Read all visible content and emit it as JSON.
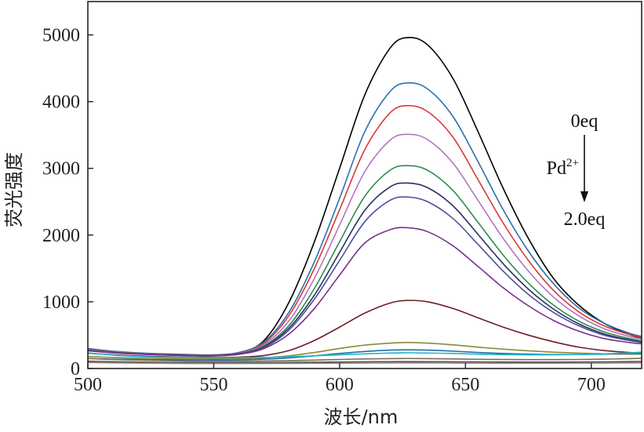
{
  "chart_data": {
    "type": "line",
    "xlabel": "波长/nm",
    "ylabel": "荧光强度",
    "xlim": [
      500,
      720
    ],
    "ylim": [
      0,
      5500
    ],
    "x_ticks": [
      500,
      550,
      600,
      650,
      700
    ],
    "y_ticks": [
      0,
      1000,
      2000,
      3000,
      4000,
      5000
    ],
    "x_tick_labels": [
      "500",
      "550",
      "600",
      "650",
      "700"
    ],
    "y_tick_labels": [
      "0",
      "1000",
      "2000",
      "3000",
      "4000",
      "5000"
    ],
    "grid": false,
    "legend": "none",
    "annotation": {
      "top_label": "0eq",
      "ion_label": "Pd",
      "ion_charge": "2+",
      "bottom_label": "2.0eq",
      "arrow_direction": "down"
    },
    "x": [
      500,
      510,
      520,
      530,
      540,
      550,
      560,
      570,
      580,
      590,
      600,
      610,
      620,
      627,
      635,
      645,
      655,
      665,
      675,
      685,
      695,
      705,
      715,
      720
    ],
    "series": [
      {
        "color": "#000000",
        "values": [
          270,
          240,
          220,
          205,
          195,
          190,
          230,
          420,
          1000,
          1900,
          3000,
          4100,
          4800,
          4960,
          4850,
          4350,
          3550,
          2700,
          1950,
          1350,
          950,
          680,
          510,
          460
        ]
      },
      {
        "color": "#2c6fae",
        "values": [
          300,
          260,
          235,
          220,
          210,
          205,
          240,
          400,
          850,
          1600,
          2550,
          3550,
          4150,
          4280,
          4190,
          3780,
          3100,
          2380,
          1760,
          1270,
          910,
          680,
          530,
          480
        ]
      },
      {
        "color": "#d63a35",
        "values": [
          285,
          250,
          228,
          214,
          205,
          200,
          232,
          380,
          800,
          1500,
          2380,
          3280,
          3830,
          3940,
          3850,
          3470,
          2830,
          2180,
          1620,
          1170,
          850,
          640,
          510,
          465
        ]
      },
      {
        "color": "#b274c0",
        "values": [
          280,
          246,
          225,
          211,
          202,
          197,
          228,
          360,
          720,
          1350,
          2150,
          2950,
          3420,
          3510,
          3430,
          3080,
          2520,
          1950,
          1460,
          1070,
          790,
          600,
          480,
          440
        ]
      },
      {
        "color": "#2e8b4e",
        "values": [
          275,
          243,
          222,
          209,
          200,
          195,
          224,
          340,
          650,
          1200,
          1900,
          2580,
          2970,
          3040,
          2970,
          2670,
          2190,
          1700,
          1280,
          950,
          710,
          550,
          450,
          415
        ]
      },
      {
        "color": "#2b2f5e",
        "values": [
          272,
          240,
          220,
          207,
          198,
          193,
          220,
          325,
          610,
          1100,
          1740,
          2370,
          2720,
          2780,
          2710,
          2440,
          2010,
          1570,
          1190,
          890,
          670,
          520,
          430,
          400
        ]
      },
      {
        "color": "#4b4f9e",
        "values": [
          268,
          237,
          217,
          204,
          195,
          190,
          216,
          315,
          580,
          1040,
          1620,
          2200,
          2520,
          2570,
          2500,
          2250,
          1860,
          1460,
          1110,
          840,
          640,
          500,
          420,
          390
        ]
      },
      {
        "color": "#7a2f8e",
        "values": [
          265,
          234,
          215,
          202,
          193,
          188,
          212,
          300,
          520,
          900,
          1400,
          1880,
          2080,
          2110,
          2050,
          1840,
          1530,
          1210,
          940,
          720,
          560,
          450,
          390,
          370
        ]
      },
      {
        "color": "#6e1e23",
        "values": [
          230,
          205,
          188,
          177,
          170,
          166,
          170,
          195,
          270,
          420,
          620,
          830,
          980,
          1020,
          1000,
          900,
          760,
          620,
          500,
          400,
          320,
          270,
          240,
          230
        ]
      },
      {
        "color": "#8a8a3a",
        "values": [
          180,
          165,
          155,
          150,
          147,
          145,
          147,
          160,
          190,
          240,
          300,
          350,
          380,
          390,
          380,
          355,
          320,
          290,
          265,
          245,
          230,
          220,
          215,
          215
        ]
      },
      {
        "color": "#1f6fa3",
        "values": [
          150,
          140,
          135,
          132,
          130,
          128,
          130,
          140,
          160,
          190,
          225,
          255,
          275,
          280,
          275,
          260,
          240,
          225,
          215,
          210,
          210,
          215,
          225,
          230
        ]
      },
      {
        "color": "#23b4c9",
        "values": [
          235,
          200,
          180,
          170,
          165,
          162,
          162,
          165,
          175,
          190,
          205,
          220,
          232,
          235,
          232,
          225,
          215,
          208,
          205,
          205,
          210,
          220,
          235,
          245
        ]
      },
      {
        "color": "#7b6b5e",
        "values": [
          150,
          135,
          125,
          118,
          112,
          110,
          110,
          112,
          118,
          125,
          135,
          143,
          148,
          150,
          148,
          143,
          138,
          135,
          133,
          133,
          135,
          140,
          148,
          152
        ]
      },
      {
        "color": "#555555",
        "values": [
          110,
          102,
          96,
          92,
          90,
          88,
          88,
          89,
          92,
          95,
          98,
          101,
          103,
          104,
          103,
          101,
          99,
          98,
          97,
          97,
          98,
          100,
          104,
          106
        ]
      },
      {
        "color": "#8e7e76",
        "values": [
          90,
          85,
          81,
          78,
          76,
          75,
          75,
          76,
          77,
          78,
          80,
          82,
          83,
          84,
          83,
          82,
          81,
          80,
          80,
          80,
          81,
          82,
          84,
          85
        ]
      }
    ]
  }
}
